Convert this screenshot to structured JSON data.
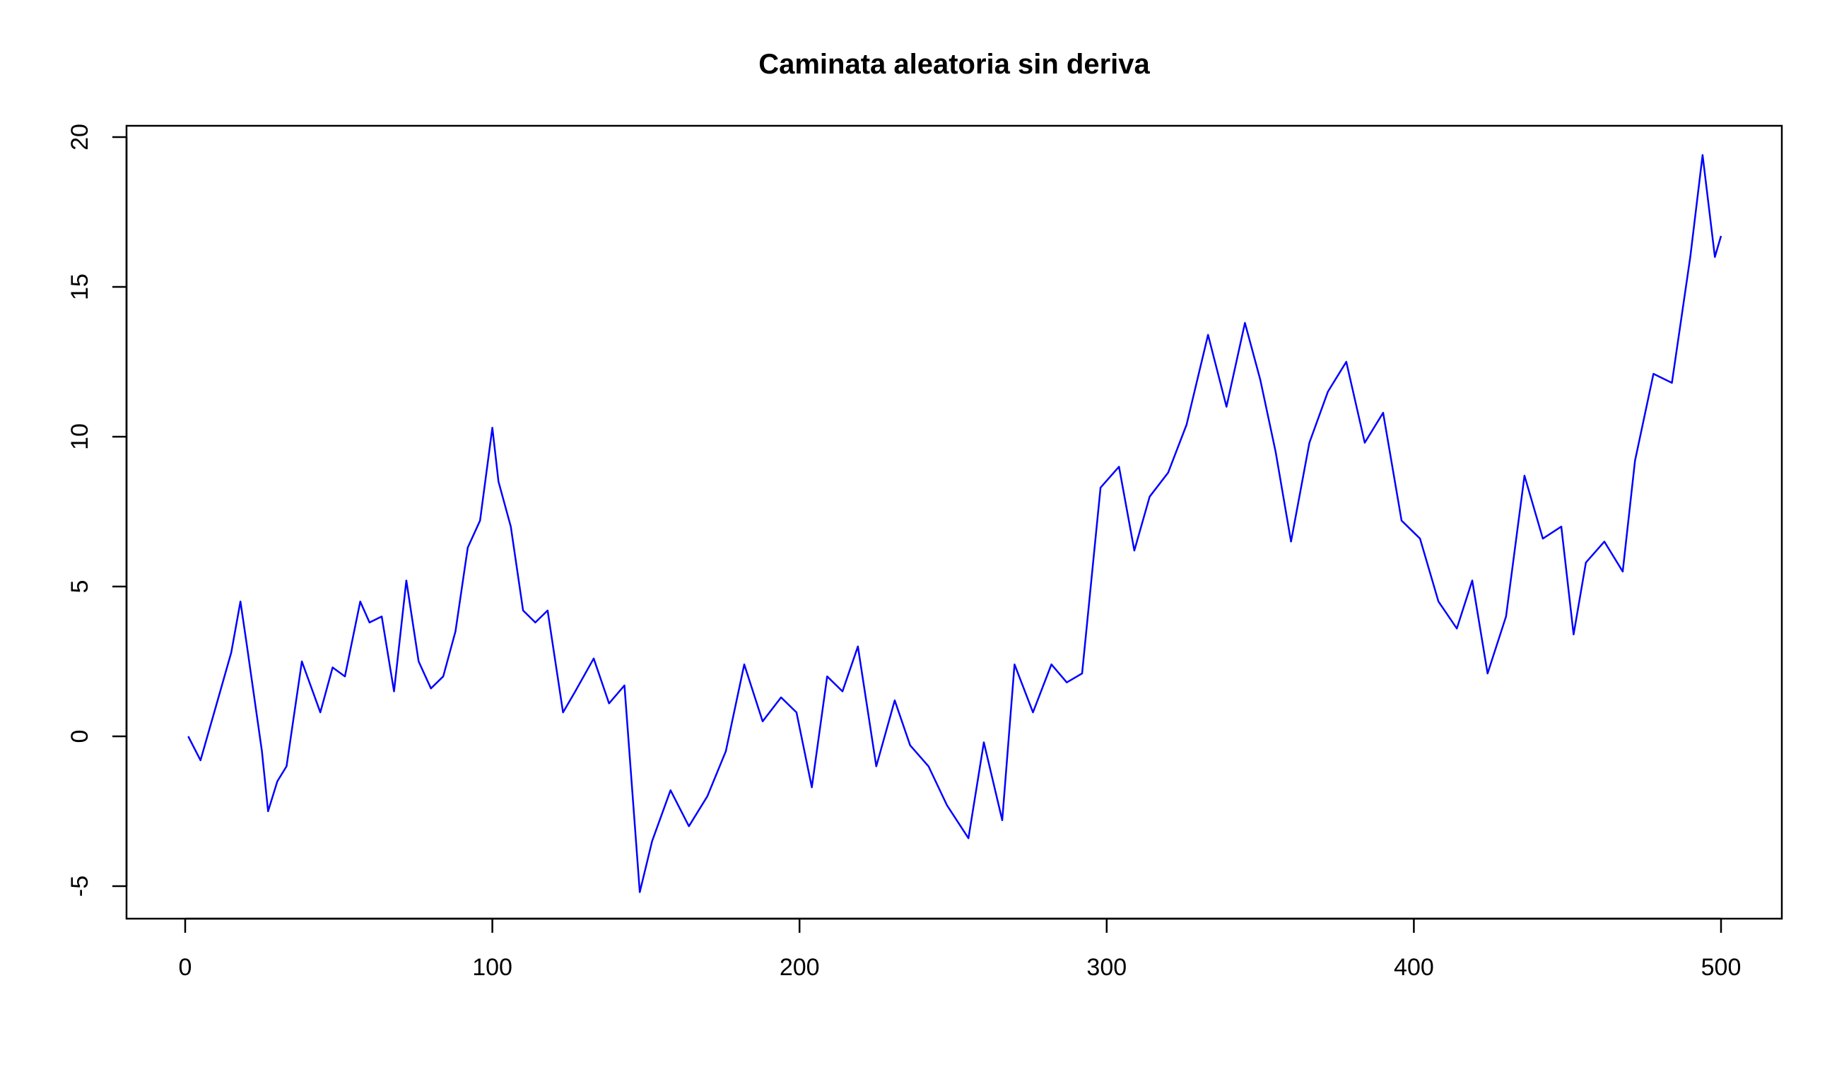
{
  "chart_data": {
    "type": "line",
    "title": "Caminata aleatoria sin deriva",
    "xlabel": "",
    "ylabel": "",
    "xlim": [
      0,
      500
    ],
    "ylim": [
      -5,
      20
    ],
    "x_ticks": [
      0,
      100,
      200,
      300,
      400,
      500
    ],
    "y_ticks": [
      -5,
      0,
      5,
      10,
      15,
      20
    ],
    "x_tick_labels": [
      "0",
      "100",
      "200",
      "300",
      "400",
      "500"
    ],
    "y_tick_labels": [
      "-5",
      "0",
      "5",
      "10",
      "15",
      "20"
    ],
    "grid": false,
    "legend": "none",
    "line_color": "#0000ff",
    "series": [
      {
        "x": [
          1,
          5,
          10,
          15,
          18,
          20,
          25,
          27,
          30,
          33,
          38,
          44,
          48,
          52,
          57,
          60,
          64,
          68,
          72,
          76,
          80,
          84,
          88,
          92,
          96,
          100,
          102,
          106,
          110,
          114,
          118,
          123,
          127,
          133,
          138,
          143,
          148,
          152,
          158,
          164,
          170,
          176,
          182,
          188,
          194,
          199,
          204,
          209,
          214,
          219,
          225,
          231,
          236,
          242,
          248,
          255,
          260,
          266,
          270,
          276,
          282,
          287,
          292,
          298,
          304,
          309,
          314,
          320,
          326,
          333,
          339,
          345,
          350,
          355,
          360,
          366,
          372,
          378,
          384,
          390,
          396,
          402,
          408,
          414,
          419,
          424,
          430,
          436,
          442,
          448,
          452,
          456,
          462,
          468,
          472,
          478,
          484,
          490,
          494,
          498,
          500
        ],
        "y": [
          0,
          -0.8,
          1.0,
          2.8,
          4.5,
          3.1,
          -0.5,
          -2.5,
          -1.5,
          -1.0,
          2.5,
          0.8,
          2.3,
          2.0,
          4.5,
          3.8,
          4.0,
          1.5,
          5.2,
          2.5,
          1.6,
          2.0,
          3.5,
          6.3,
          7.2,
          10.3,
          8.5,
          7.0,
          4.2,
          3.8,
          4.2,
          0.8,
          1.5,
          2.6,
          1.1,
          1.7,
          -5.2,
          -3.5,
          -1.8,
          -3.0,
          -2.0,
          -0.5,
          2.4,
          0.5,
          1.3,
          0.8,
          -1.7,
          2.0,
          1.5,
          3.0,
          -1.0,
          1.2,
          -0.3,
          -1.0,
          -2.3,
          -3.4,
          -0.2,
          -2.8,
          2.4,
          0.8,
          2.4,
          1.8,
          2.1,
          8.3,
          9.0,
          6.2,
          8.0,
          8.8,
          10.4,
          13.4,
          11.0,
          13.8,
          11.9,
          9.5,
          6.5,
          9.8,
          11.5,
          12.5,
          9.8,
          10.8,
          7.2,
          6.6,
          4.5,
          3.6,
          5.2,
          2.1,
          4.0,
          8.7,
          6.6,
          7.0,
          3.4,
          5.8,
          6.5,
          5.5,
          9.2,
          12.1,
          11.8,
          16.0,
          19.4,
          16.0,
          16.7
        ]
      }
    ]
  }
}
